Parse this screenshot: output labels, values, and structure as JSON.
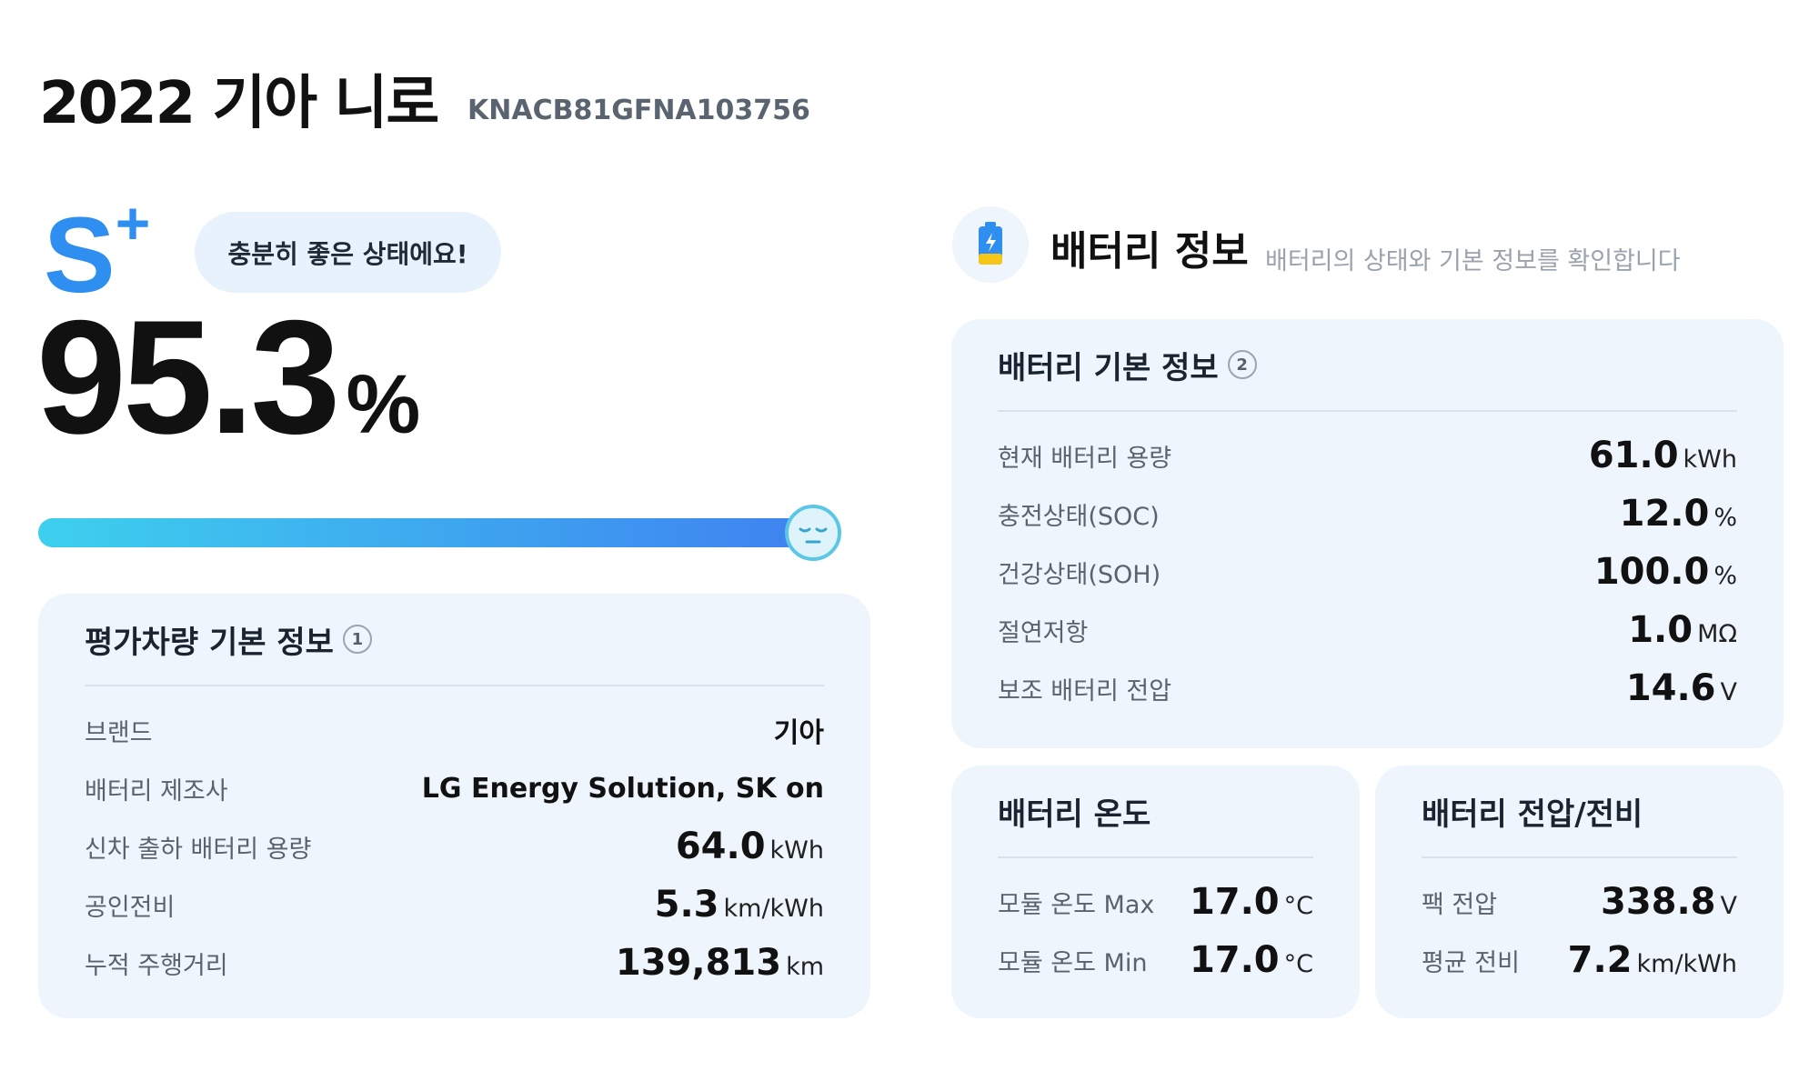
{
  "header": {
    "title": "2022 기아 니로",
    "vin": "KNACB81GFNA103756"
  },
  "grade": {
    "letter": "S",
    "modifier": "+",
    "message": "충분히 좋은 상태에요!"
  },
  "score": {
    "value": "95.3",
    "unit": "%"
  },
  "vehicle_info": {
    "title": "평가차량 기본 정보",
    "badge": "1",
    "rows": [
      {
        "label": "브랜드",
        "value": "기아"
      },
      {
        "label": "배터리 제조사",
        "value": "LG Energy Solution, SK on"
      },
      {
        "label": "신차 출하 배터리 용량",
        "value": "64.0",
        "unit": "kWh"
      },
      {
        "label": "공인전비",
        "value": "5.3",
        "unit": "km/kWh"
      },
      {
        "label": "누적 주행거리",
        "value": "139,813",
        "unit": "km"
      }
    ]
  },
  "battery_section": {
    "title": "배터리 정보",
    "subtitle": "배터리의 상태와 기본 정보를 확인합니다"
  },
  "battery_basic": {
    "title": "배터리 기본 정보",
    "badge": "2",
    "rows": [
      {
        "label": "현재 배터리 용량",
        "value": "61.0",
        "unit": "kWh"
      },
      {
        "label": "충전상태(SOC)",
        "value": "12.0",
        "unit": "%"
      },
      {
        "label": "건강상태(SOH)",
        "value": "100.0",
        "unit": "%"
      },
      {
        "label": "절연저항",
        "value": "1.0",
        "unit": "MΩ"
      },
      {
        "label": "보조 배터리 전압",
        "value": "14.6",
        "unit": "V"
      }
    ]
  },
  "temperature": {
    "title": "배터리 온도",
    "rows": [
      {
        "label": "모듈 온도 Max",
        "value": "17.0",
        "unit": "°C"
      },
      {
        "label": "모듈 온도 Min",
        "value": "17.0",
        "unit": "°C"
      }
    ]
  },
  "voltage": {
    "title": "배터리 전압/전비",
    "rows": [
      {
        "label": "팩 전압",
        "value": "338.8",
        "unit": "V"
      },
      {
        "label": "평균 전비",
        "value": "7.2",
        "unit": "km/kWh"
      }
    ]
  }
}
